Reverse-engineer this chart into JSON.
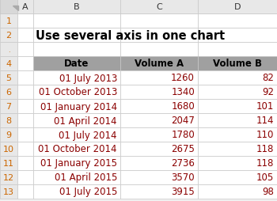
{
  "title": "Use several axis in one chart",
  "headers": [
    "Date",
    "Volume A",
    "Volume B"
  ],
  "rows": [
    [
      "01 July 2013",
      "1260",
      "82"
    ],
    [
      "01 October 2013",
      "1340",
      "92"
    ],
    [
      "01 January 2014",
      "1680",
      "101"
    ],
    [
      "01 April 2014",
      "2047",
      "114"
    ],
    [
      "01 July 2014",
      "1780",
      "110"
    ],
    [
      "01 October 2014",
      "2675",
      "118"
    ],
    [
      "01 January 2015",
      "2736",
      "118"
    ],
    [
      "01 April 2015",
      "3570",
      "105"
    ],
    [
      "01 July 2015",
      "3915",
      "98"
    ]
  ],
  "header_bg": "#A0A0A0",
  "header_text": "#000000",
  "cell_bg": "#FFFFFF",
  "cell_text_color": "#8B0000",
  "grid_color": "#C8C8C8",
  "row_header_bg": "#E8E8E8",
  "title_font_size": 10.5,
  "header_font_size": 8.5,
  "cell_font_size": 8.5,
  "row_num_font_size": 8,
  "col_letter_font_size": 8,
  "fig_bg": "#F0F0F0",
  "corner_bg": "#D8D8D8"
}
